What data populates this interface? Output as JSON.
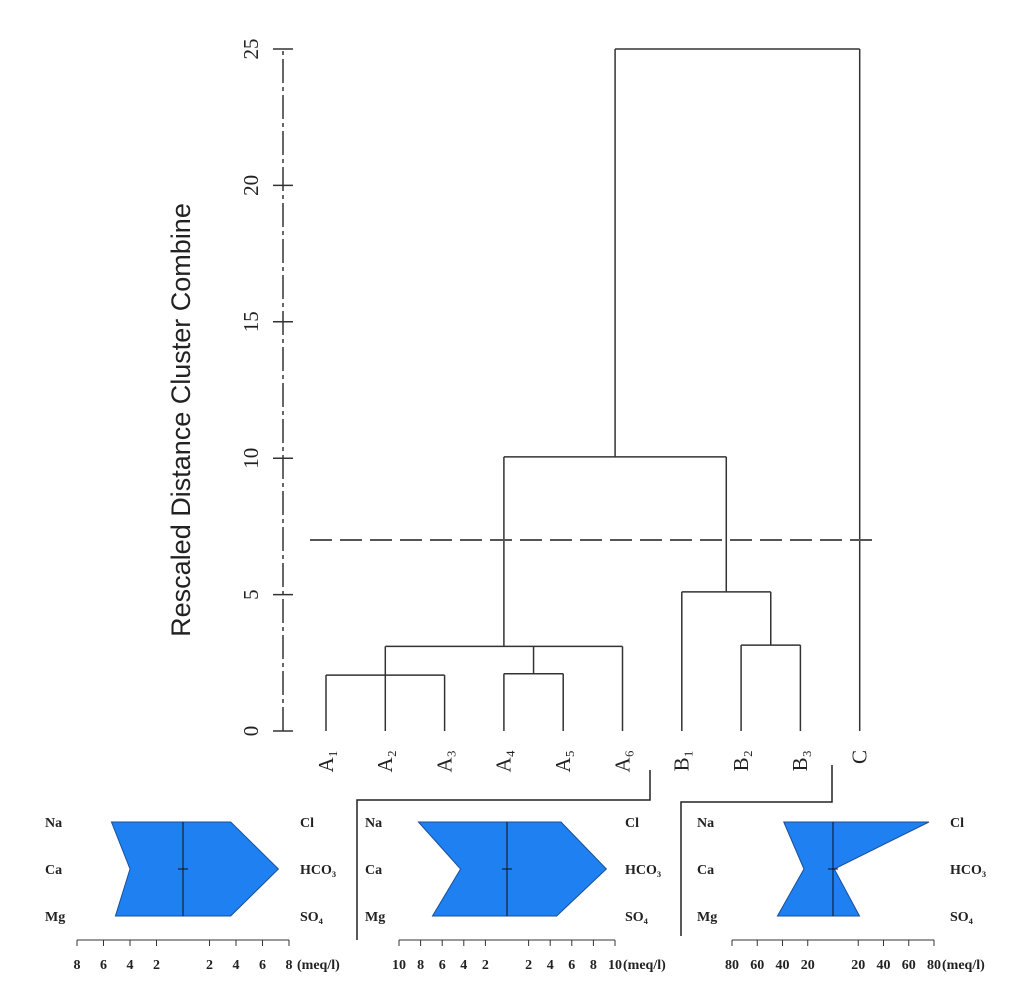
{
  "chart_data": [
    {
      "type": "dendrogram",
      "ylabel": "Rescaled Distance Cluster Combine",
      "ylim": [
        0,
        25
      ],
      "yticks": [
        0,
        5,
        10,
        15,
        20,
        25
      ],
      "leaves": [
        "A₁",
        "A₂",
        "A₃",
        "A₄",
        "A₅",
        "A₆",
        "B₁",
        "B₂",
        "B₃",
        "C"
      ],
      "merges": [
        {
          "children": [
            {
              "leaf": 0
            },
            {
              "leaf": 1
            },
            {
              "leaf": 2
            }
          ],
          "height": 2.05
        },
        {
          "children": [
            {
              "leaf": 3
            },
            {
              "leaf": 4
            }
          ],
          "height": 2.1
        },
        {
          "children": [
            {
              "merge": 0
            },
            {
              "merge": 1
            },
            {
              "leaf": 5
            }
          ],
          "height": 3.1
        },
        {
          "children": [
            {
              "leaf": 7
            },
            {
              "leaf": 8
            }
          ],
          "height": 3.15
        },
        {
          "children": [
            {
              "leaf": 6
            },
            {
              "merge": 3
            }
          ],
          "height": 5.1
        },
        {
          "children": [
            {
              "merge": 2
            },
            {
              "merge": 4
            }
          ],
          "height": 10.05
        },
        {
          "children": [
            {
              "merge": 5
            },
            {
              "leaf": 9
            }
          ],
          "height": 25
        }
      ],
      "cutoff": 7
    },
    {
      "type": "stiff",
      "color": "#1f80f2",
      "unit": "(meq/l)",
      "left_labels": [
        "Na",
        "Ca",
        "Mg"
      ],
      "left_values": [
        5.4,
        4,
        5.1
      ],
      "right_labels": [
        "Cl",
        "HCO₃",
        "SO₄"
      ],
      "right_values": [
        3.6,
        7.2,
        3.6
      ],
      "xlim": [
        -8,
        8
      ],
      "xticks": [
        {
          "value": -8,
          "label": "8"
        },
        {
          "value": -6,
          "label": "6"
        },
        {
          "value": -4,
          "label": "4"
        },
        {
          "value": -2,
          "label": "2"
        },
        2,
        4,
        6,
        8
      ]
    },
    {
      "type": "stiff",
      "color": "#1f80f2",
      "unit": "(meq/l)",
      "left_labels": [
        "Na",
        "Ca",
        "Mg"
      ],
      "left_values": [
        8.2,
        4.3,
        6.9
      ],
      "right_labels": [
        "Cl",
        "HCO₃",
        "SO₄"
      ],
      "right_values": [
        5,
        9.2,
        4.6
      ],
      "xlim": [
        -10,
        10
      ],
      "xticks": [
        {
          "value": -10,
          "label": "10"
        },
        {
          "value": -8,
          "label": "8"
        },
        {
          "value": -6,
          "label": "6"
        },
        {
          "value": -4,
          "label": "4"
        },
        {
          "value": -2,
          "label": "2"
        },
        2,
        4,
        6,
        8,
        10
      ]
    },
    {
      "type": "stiff",
      "color": "#1f80f2",
      "unit": "(meq/l)",
      "left_labels": [
        "Na",
        "Ca",
        "Mg"
      ],
      "left_values": [
        39,
        23,
        44
      ],
      "right_labels": [
        "Cl",
        "HCO₃",
        "SO₄"
      ],
      "right_values": [
        76,
        1,
        21
      ],
      "xlim": [
        -80,
        80
      ],
      "xticks": [
        {
          "value": -80,
          "label": "80"
        },
        {
          "value": -60,
          "label": "60"
        },
        {
          "value": -40,
          "label": "40"
        },
        {
          "value": -20,
          "label": "20"
        },
        20,
        40,
        60,
        80
      ]
    }
  ]
}
